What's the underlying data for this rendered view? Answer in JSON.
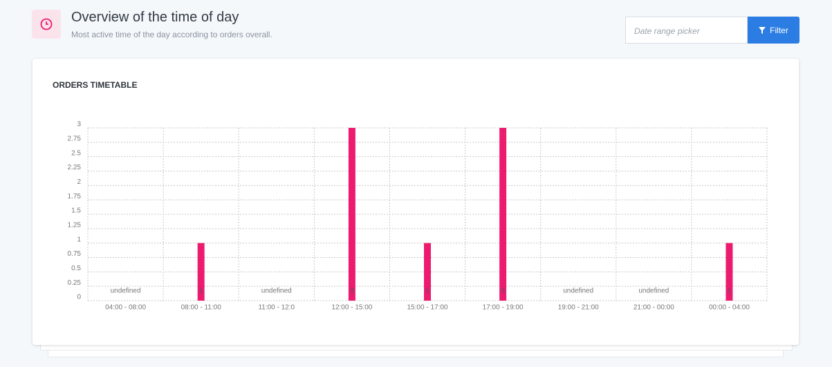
{
  "header": {
    "title": "Overview of the time of day",
    "subtitle": "Most active time of the day according to orders overall."
  },
  "filter": {
    "placeholder": "Date range picker",
    "button": "Filter"
  },
  "card": {
    "title": "ORDERS TIMETABLE"
  },
  "chart_data": {
    "type": "bar",
    "categories": [
      "04:00 - 08:00",
      "08:00 - 11:00",
      "11:00 - 12:0",
      "12:00 - 15:00",
      "15:00 - 17:00",
      "17:00 - 19:00",
      "19:00 - 21:00",
      "21:00 - 00:00",
      "00:00 - 04:00"
    ],
    "values": [
      null,
      1,
      null,
      3,
      1,
      3,
      null,
      null,
      1
    ],
    "value_labels": [
      "undefined",
      "1",
      "undefined",
      "3",
      "1",
      "3",
      "undefined",
      "undefined",
      "1"
    ],
    "color": "#ec1b6f",
    "ylim": [
      0,
      3
    ],
    "yticks": [
      0,
      0.25,
      0.5,
      0.75,
      1,
      1.25,
      1.5,
      1.75,
      2,
      2.25,
      2.5,
      2.75,
      3
    ],
    "grid": true
  }
}
